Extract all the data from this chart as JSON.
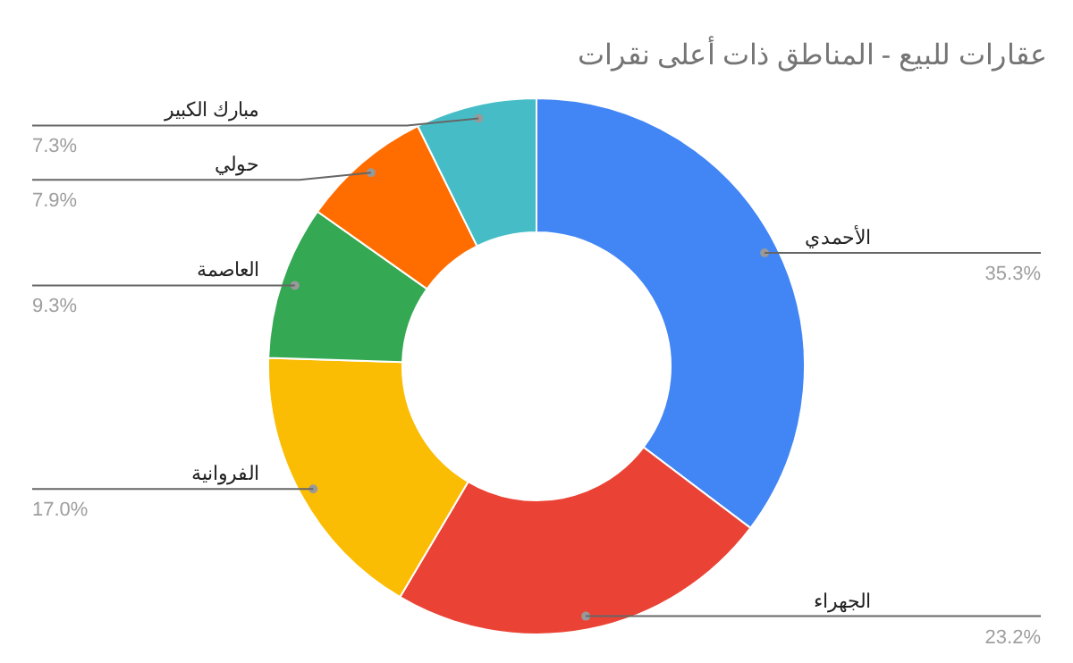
{
  "chart_data": {
    "type": "donut",
    "title": "عقارات للبيع - المناطق ذات أعلى نقرات",
    "categories": [
      "الأحمدي",
      "الجهراء",
      "الفروانية",
      "العاصمة",
      "حولي",
      "مبارك الكبير"
    ],
    "values": [
      35.3,
      23.2,
      17.0,
      9.3,
      7.9,
      7.3
    ],
    "value_labels": [
      "35.3%",
      "23.2%",
      "17.0%",
      "9.3%",
      "7.9%",
      "7.3%"
    ],
    "colors": [
      "#4285f4",
      "#ea4335",
      "#fbbc04",
      "#34a853",
      "#ff6d01",
      "#46bdc6"
    ]
  }
}
